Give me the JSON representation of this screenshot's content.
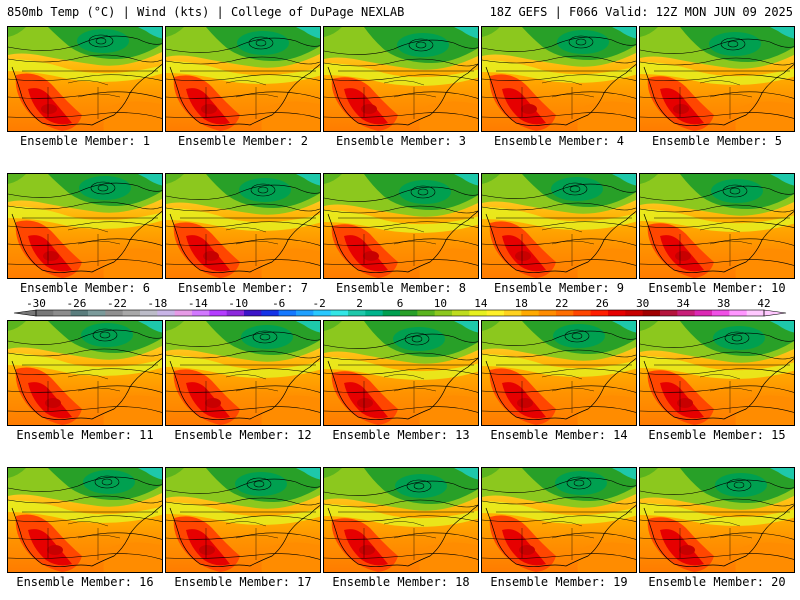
{
  "header": {
    "title_left": "850mb Temp (°C) | Wind (kts) | College of DuPage NEXLAB",
    "title_right": "18Z GEFS | F066 Valid: 12Z MON JUN 09 2025"
  },
  "panels": [
    {
      "caption": "Ensemble Member: 1"
    },
    {
      "caption": "Ensemble Member: 2"
    },
    {
      "caption": "Ensemble Member: 3"
    },
    {
      "caption": "Ensemble Member: 4"
    },
    {
      "caption": "Ensemble Member: 5"
    },
    {
      "caption": "Ensemble Member: 6"
    },
    {
      "caption": "Ensemble Member: 7"
    },
    {
      "caption": "Ensemble Member: 8"
    },
    {
      "caption": "Ensemble Member: 9"
    },
    {
      "caption": "Ensemble Member: 10"
    },
    {
      "caption": "Ensemble Member: 11"
    },
    {
      "caption": "Ensemble Member: 12"
    },
    {
      "caption": "Ensemble Member: 13"
    },
    {
      "caption": "Ensemble Member: 14"
    },
    {
      "caption": "Ensemble Member: 15"
    },
    {
      "caption": "Ensemble Member: 16"
    },
    {
      "caption": "Ensemble Member: 17"
    },
    {
      "caption": "Ensemble Member: 18"
    },
    {
      "caption": "Ensemble Member: 19"
    },
    {
      "caption": "Ensemble Member: 20"
    }
  ],
  "colorbar": {
    "labels": [
      "-30",
      "-26",
      "-22",
      "-18",
      "-14",
      "-10",
      "-6",
      "-2",
      "2",
      "6",
      "10",
      "14",
      "18",
      "22",
      "26",
      "30",
      "34",
      "38",
      "42"
    ],
    "colors": [
      "#787878",
      "#8c8c8c",
      "#5a7d7d",
      "#7a9a9a",
      "#909090",
      "#a8a8a8",
      "#bcbcc8",
      "#c8b4e6",
      "#e69be6",
      "#d278ff",
      "#b43cff",
      "#8c28dc",
      "#3c14c8",
      "#1432e6",
      "#1478ff",
      "#1ea0ff",
      "#28c8ff",
      "#32e6e6",
      "#1ec8aa",
      "#00b48c",
      "#00a050",
      "#28a028",
      "#5ab41e",
      "#8cc81e",
      "#bedc1e",
      "#e6f01e",
      "#fff028",
      "#ffd21e",
      "#ffaa00",
      "#ff8c00",
      "#ff6e00",
      "#ff4600",
      "#ff1e00",
      "#e60000",
      "#c80000",
      "#a00000",
      "#b4143c",
      "#c81e78",
      "#dc28b4",
      "#f050e6",
      "#ff96ff",
      "#ffc8ff"
    ]
  }
}
